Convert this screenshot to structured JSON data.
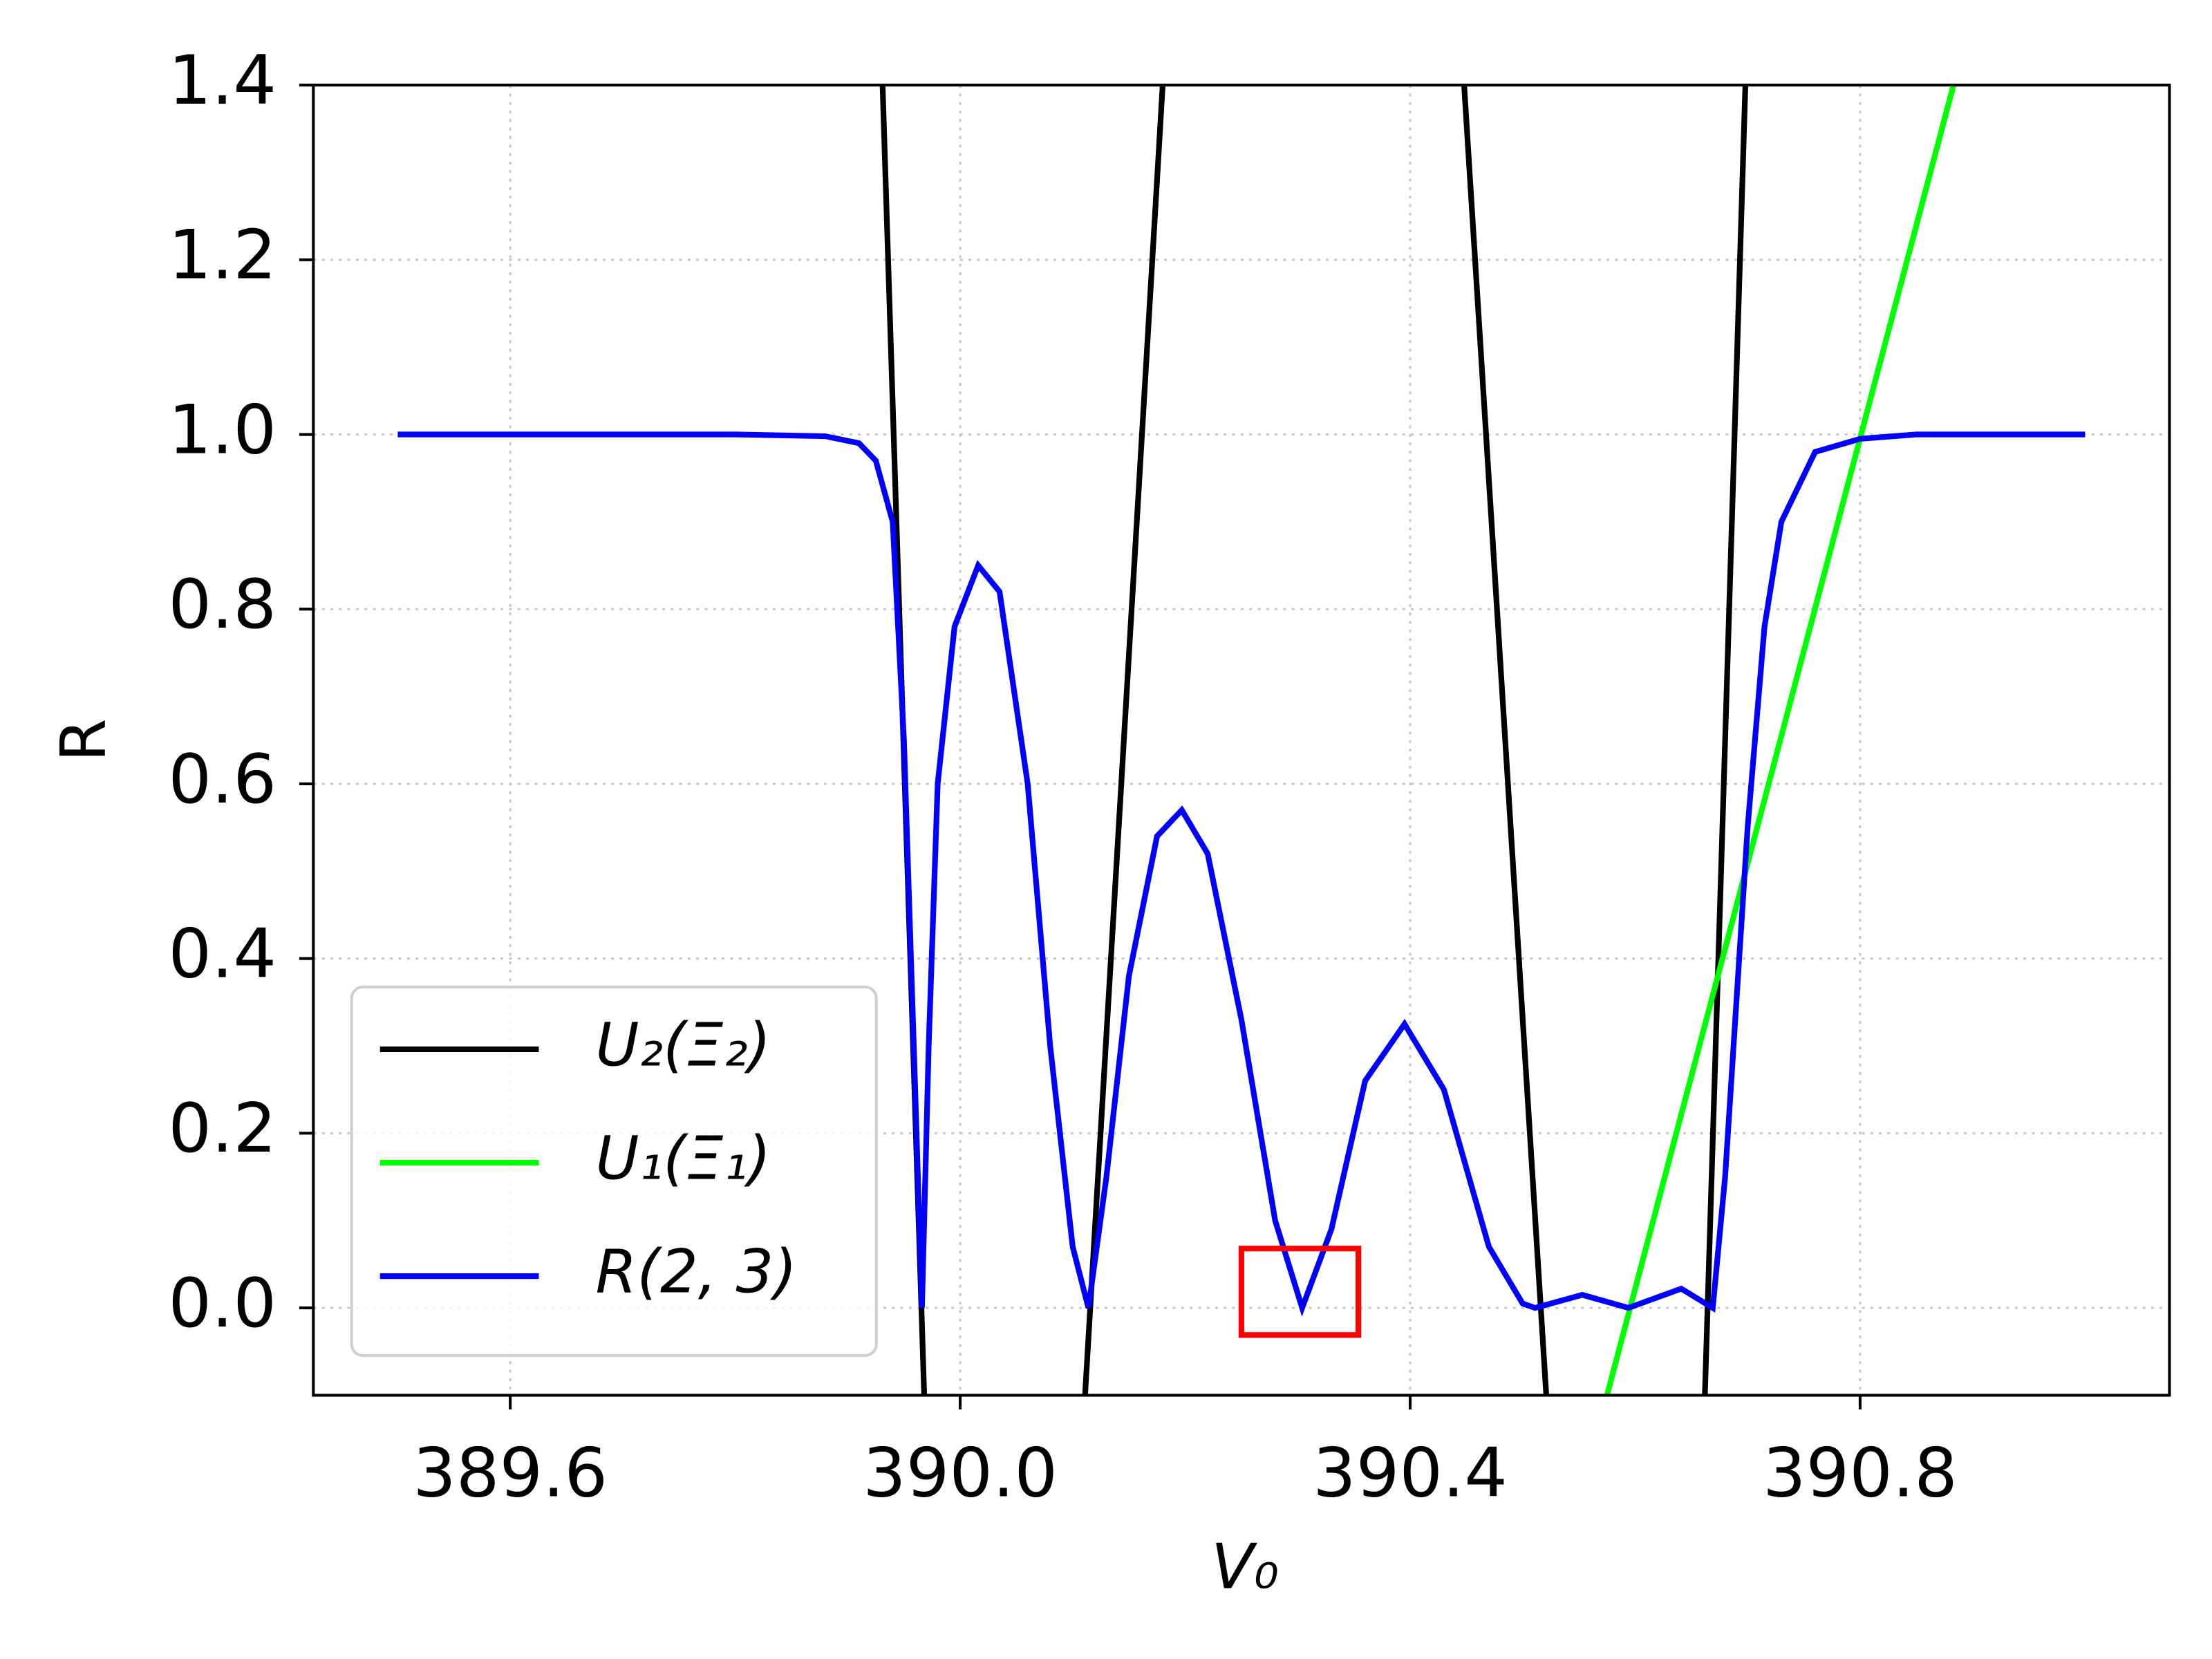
{
  "chart_data": {
    "type": "line",
    "xlabel": "V₀",
    "ylabel": "R",
    "xlim": [
      389.425,
      391.075
    ],
    "ylim": [
      -0.1,
      1.4
    ],
    "xticks": [
      389.6,
      {
        "value": 390,
        "label": "390.0"
      },
      390.4,
      390.8
    ],
    "yticks": [
      {
        "value": 0,
        "label": "0.0"
      },
      0.2,
      0.4,
      0.6,
      0.8,
      {
        "value": 1,
        "label": "1.0"
      },
      1.2,
      1.4
    ],
    "grid": true,
    "legend": "lower left",
    "series": [
      {
        "name": "U₂(Ξ₂)",
        "color": "#000000",
        "x": [
          389.931,
          389.968,
          390.04,
          390.111,
          390.18,
          390.3,
          390.448,
          390.521,
          390.6,
          390.662,
          390.698
        ],
        "values": [
          1.4,
          -0.1,
          null,
          -0.1,
          1.4,
          null,
          1.4,
          -0.1,
          null,
          -0.1,
          1.4
        ]
      },
      {
        "name": "U₁(Ξ₁)",
        "color": "#00ff00",
        "x": [
          390.575,
          390.883
        ],
        "values": [
          -0.1,
          1.4
        ]
      },
      {
        "name": "R(2, 3)",
        "color": "#0000ff",
        "x": [
          389.5,
          389.8,
          389.88,
          389.91,
          389.925,
          389.94,
          389.95,
          389.96,
          389.966,
          389.972,
          389.98,
          389.995,
          390.016,
          390.035,
          390.06,
          390.08,
          390.1,
          390.114,
          390.13,
          390.15,
          390.175,
          390.197,
          390.22,
          390.25,
          390.28,
          390.304,
          390.33,
          390.36,
          390.395,
          390.43,
          390.47,
          390.5,
          390.511,
          390.553,
          390.594,
          390.641,
          390.669,
          390.68,
          390.69,
          390.7,
          390.715,
          390.73,
          390.76,
          390.8,
          390.85,
          391.0
        ],
        "values": [
          1.0,
          1.0,
          0.998,
          0.99,
          0.97,
          0.9,
          0.65,
          0.25,
          0.0,
          0.3,
          0.6,
          0.78,
          0.85,
          0.82,
          0.6,
          0.3,
          0.07,
          0.0,
          0.15,
          0.38,
          0.54,
          0.57,
          0.52,
          0.33,
          0.1,
          0.0,
          0.09,
          0.26,
          0.325,
          0.25,
          0.07,
          0.005,
          0.0,
          0.015,
          0.0,
          0.022,
          0.0,
          0.15,
          0.35,
          0.55,
          0.78,
          0.9,
          0.98,
          0.995,
          1.0,
          1.0
        ]
      }
    ],
    "highlight_box": {
      "color": "#ff0000",
      "x": [
        390.25,
        390.354
      ],
      "y": [
        -0.031,
        0.068
      ]
    }
  }
}
